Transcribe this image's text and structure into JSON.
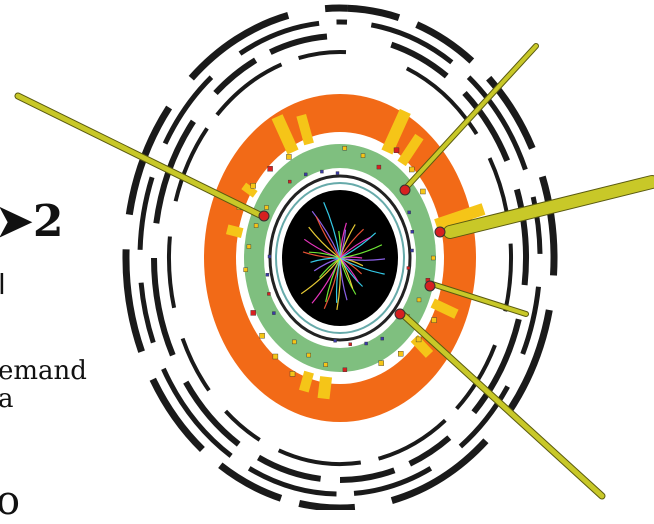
{
  "text_fragments": {
    "arrow_number": "➤2",
    "small_glyph": "l",
    "line1": "emand",
    "line2": "a",
    "bottom_glyph": "o"
  },
  "colors": {
    "outer_muon": "#1a1a1a",
    "hadronic_calorimeter": "#f26a17",
    "em_calorimeter": "#7fbf7f",
    "tracker_bg": "#000000",
    "energy_deposit": "#f5c518",
    "jet_line": "#c8c828",
    "cell_blue": "#3a3aa8",
    "cell_red": "#d62020"
  }
}
